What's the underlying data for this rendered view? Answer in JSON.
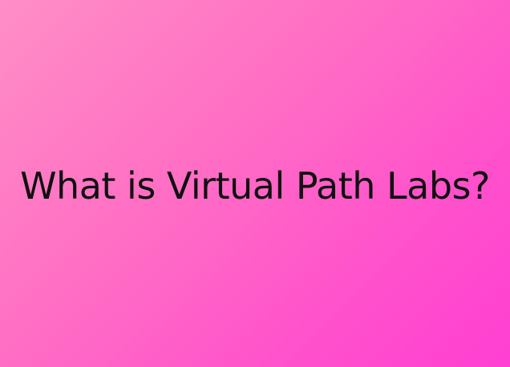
{
  "headline": {
    "text": "What is Virtual Path Labs?"
  },
  "colors": {
    "background_start": "#ff8ec6",
    "background_end": "#ff3fd2",
    "text": "#111111"
  }
}
